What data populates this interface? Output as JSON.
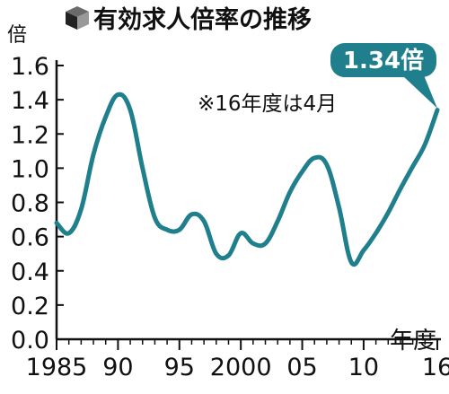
{
  "chart_data": {
    "type": "line",
    "title": "有効求人倍率の推移",
    "ylabel": "倍",
    "xlabel": "年度",
    "note": "※16年度は4月",
    "ylim": [
      0,
      1.6
    ],
    "xlim": [
      1985,
      2016
    ],
    "y_ticks": [
      0.0,
      0.2,
      0.4,
      0.6,
      0.8,
      1.0,
      1.2,
      1.4,
      1.6
    ],
    "y_tick_labels": [
      "0.0",
      "0.2",
      "0.4",
      "0.6",
      "0.8",
      "1.0",
      "1.2",
      "1.4",
      "1.6"
    ],
    "x_ticks": [
      1985,
      1990,
      1995,
      2000,
      2005,
      2010,
      2016
    ],
    "x_tick_labels": [
      "1985",
      "90",
      "95",
      "2000",
      "05",
      "10",
      "16"
    ],
    "grid": false,
    "legend": "none",
    "series": [
      {
        "x": [
          1985,
          1986,
          1987,
          1988,
          1989,
          1990,
          1991,
          1992,
          1993,
          1994,
          1995,
          1996,
          1997,
          1998,
          1999,
          2000,
          2001,
          2002,
          2003,
          2004,
          2005,
          2006,
          2007,
          2008,
          2009,
          2010,
          2011,
          2012,
          2013,
          2014,
          2015,
          2016
        ],
        "values": [
          0.68,
          0.62,
          0.76,
          1.08,
          1.3,
          1.43,
          1.34,
          1.0,
          0.71,
          0.64,
          0.64,
          0.73,
          0.69,
          0.5,
          0.49,
          0.62,
          0.56,
          0.56,
          0.69,
          0.86,
          0.98,
          1.06,
          1.02,
          0.77,
          0.45,
          0.52,
          0.62,
          0.74,
          0.88,
          1.01,
          1.14,
          1.34
        ]
      }
    ],
    "annotation": {
      "x": 2016,
      "value": 1.34,
      "label": "1.34倍"
    },
    "colors": {
      "line": "#1f7f8c",
      "callout_fill": "#1f7f8c",
      "axis": "#111111"
    }
  },
  "icons": {
    "title_marker": "cube-icon"
  }
}
